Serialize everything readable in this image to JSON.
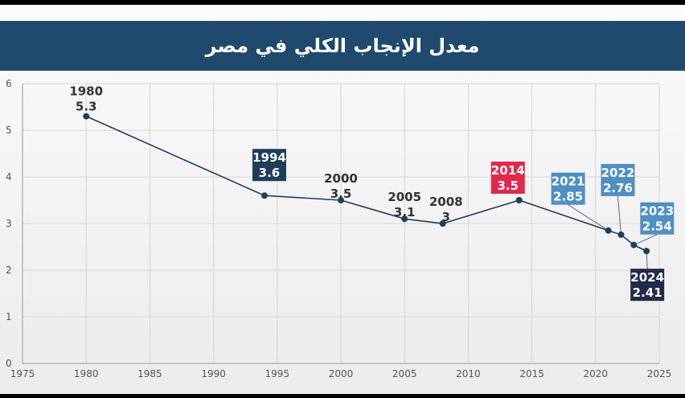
{
  "title": "معدل الإنجاب الكلي في مصر",
  "colors": {
    "title_bg": "#1f4a6e",
    "line": "#1f3e5c",
    "marker": "#1f3e5c",
    "grid": "#d6d6d6",
    "box_dark": "#1f3e5c",
    "box_light": "#4f8fc4",
    "box_red": "#e0294e",
    "box_navy": "#222a4a"
  },
  "chart_data": {
    "type": "line",
    "title": "معدل الإنجاب الكلي في مصر",
    "xlabel": "",
    "ylabel": "",
    "xlim": [
      1975,
      2025
    ],
    "ylim": [
      0,
      6
    ],
    "x_ticks": [
      1975,
      1980,
      1985,
      1990,
      1995,
      2000,
      2005,
      2010,
      2015,
      2020,
      2025
    ],
    "y_ticks": [
      0,
      1,
      2,
      3,
      4,
      5,
      6
    ],
    "grid": true,
    "points": [
      {
        "x": 1980,
        "y": 5.3,
        "year_label": "1980",
        "value_label": "5.3",
        "style": "plain"
      },
      {
        "x": 1994,
        "y": 3.6,
        "year_label": "1994",
        "value_label": "3.6",
        "style": "box_dark"
      },
      {
        "x": 2000,
        "y": 3.5,
        "year_label": "2000",
        "value_label": "3.5",
        "style": "plain"
      },
      {
        "x": 2005,
        "y": 3.1,
        "year_label": "2005",
        "value_label": "3.1",
        "style": "plain"
      },
      {
        "x": 2008,
        "y": 3.0,
        "year_label": "2008",
        "value_label": "3",
        "style": "plain"
      },
      {
        "x": 2014,
        "y": 3.5,
        "year_label": "2014",
        "value_label": "3.5",
        "style": "box_red"
      },
      {
        "x": 2021,
        "y": 2.85,
        "year_label": "2021",
        "value_label": "2.85",
        "style": "box_light"
      },
      {
        "x": 2022,
        "y": 2.76,
        "year_label": "2022",
        "value_label": "2.76",
        "style": "box_light"
      },
      {
        "x": 2023,
        "y": 2.54,
        "year_label": "2023",
        "value_label": "2.54",
        "style": "box_light"
      },
      {
        "x": 2024,
        "y": 2.41,
        "year_label": "2024",
        "value_label": "2.41",
        "style": "box_navy"
      }
    ]
  }
}
